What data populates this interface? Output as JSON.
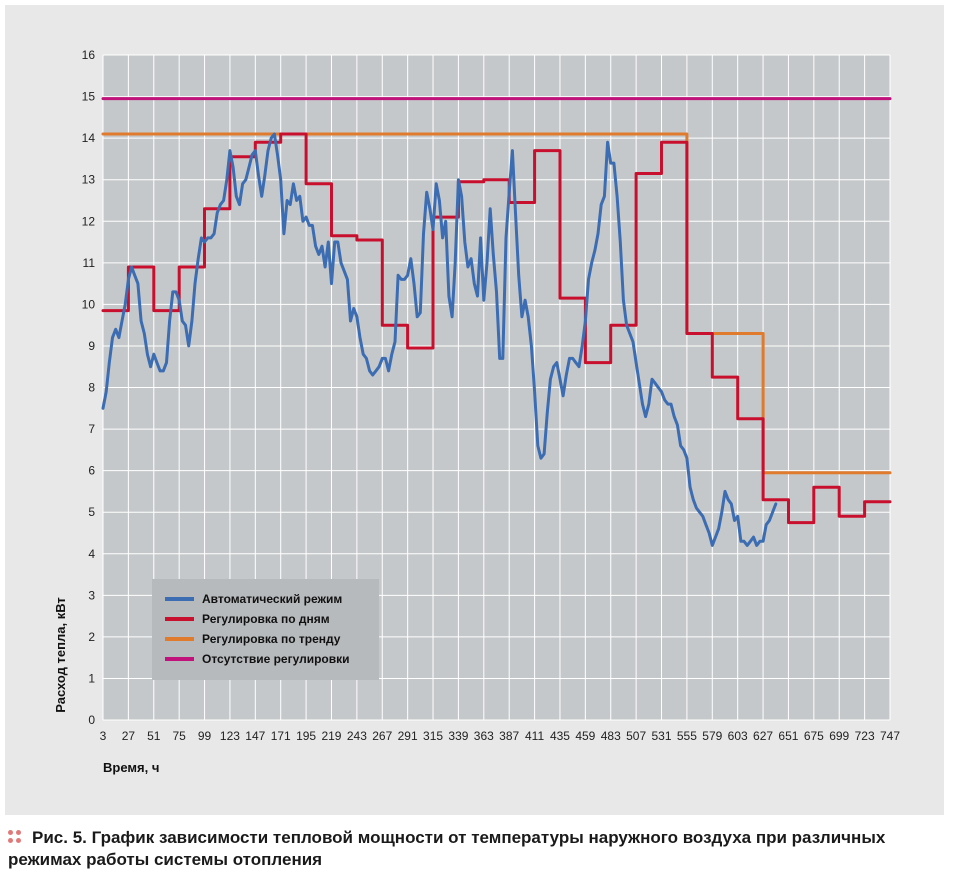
{
  "caption": {
    "text": "Рис. 5. График зависимости тепловой мощности от температуры наружного воздуха при различных режимах работы системы отопления"
  },
  "chart_data": {
    "type": "line",
    "xlabel": "Время, ч",
    "ylabel": "Расход тепла, кВт",
    "xlim": [
      3,
      747
    ],
    "ylim": [
      0,
      16
    ],
    "x_ticks": [
      3,
      27,
      51,
      75,
      99,
      123,
      147,
      171,
      195,
      219,
      243,
      267,
      291,
      315,
      339,
      363,
      387,
      411,
      435,
      459,
      483,
      507,
      531,
      555,
      579,
      603,
      627,
      651,
      675,
      699,
      723,
      747
    ],
    "y_ticks": [
      0,
      1,
      2,
      3,
      4,
      5,
      6,
      7,
      8,
      9,
      10,
      11,
      12,
      13,
      14,
      15,
      16
    ],
    "grid": true,
    "legend_position": "bottom-left",
    "series": [
      {
        "name": "Автоматический режим",
        "color": "#3c6db2",
        "points": [
          [
            3,
            7.5
          ],
          [
            6,
            7.9
          ],
          [
            9,
            8.6
          ],
          [
            12,
            9.2
          ],
          [
            15,
            9.4
          ],
          [
            18,
            9.2
          ],
          [
            21,
            9.6
          ],
          [
            24,
            10.0
          ],
          [
            27,
            10.6
          ],
          [
            30,
            10.9
          ],
          [
            33,
            10.7
          ],
          [
            36,
            10.5
          ],
          [
            39,
            9.6
          ],
          [
            42,
            9.3
          ],
          [
            45,
            8.8
          ],
          [
            48,
            8.5
          ],
          [
            51,
            8.8
          ],
          [
            54,
            8.6
          ],
          [
            57,
            8.4
          ],
          [
            60,
            8.4
          ],
          [
            63,
            8.6
          ],
          [
            66,
            9.6
          ],
          [
            69,
            10.3
          ],
          [
            72,
            10.3
          ],
          [
            75,
            10.1
          ],
          [
            78,
            9.6
          ],
          [
            81,
            9.5
          ],
          [
            84,
            9.0
          ],
          [
            87,
            9.6
          ],
          [
            90,
            10.5
          ],
          [
            93,
            11.1
          ],
          [
            96,
            11.6
          ],
          [
            99,
            11.5
          ],
          [
            102,
            11.6
          ],
          [
            105,
            11.6
          ],
          [
            108,
            11.7
          ],
          [
            111,
            12.2
          ],
          [
            114,
            12.4
          ],
          [
            117,
            12.5
          ],
          [
            120,
            13.0
          ],
          [
            123,
            13.7
          ],
          [
            126,
            13.3
          ],
          [
            129,
            12.6
          ],
          [
            132,
            12.4
          ],
          [
            135,
            12.9
          ],
          [
            138,
            13.0
          ],
          [
            141,
            13.3
          ],
          [
            144,
            13.6
          ],
          [
            147,
            13.7
          ],
          [
            150,
            13.1
          ],
          [
            153,
            12.6
          ],
          [
            156,
            13.1
          ],
          [
            159,
            13.7
          ],
          [
            162,
            14.0
          ],
          [
            165,
            14.1
          ],
          [
            168,
            13.6
          ],
          [
            171,
            13.0
          ],
          [
            174,
            11.7
          ],
          [
            177,
            12.5
          ],
          [
            180,
            12.4
          ],
          [
            183,
            12.9
          ],
          [
            186,
            12.5
          ],
          [
            189,
            12.6
          ],
          [
            192,
            12.0
          ],
          [
            195,
            12.1
          ],
          [
            198,
            11.9
          ],
          [
            201,
            11.9
          ],
          [
            204,
            11.4
          ],
          [
            207,
            11.2
          ],
          [
            210,
            11.4
          ],
          [
            213,
            10.9
          ],
          [
            216,
            11.5
          ],
          [
            219,
            10.5
          ],
          [
            222,
            11.5
          ],
          [
            225,
            11.5
          ],
          [
            228,
            11.0
          ],
          [
            231,
            10.8
          ],
          [
            234,
            10.6
          ],
          [
            237,
            9.6
          ],
          [
            240,
            9.9
          ],
          [
            243,
            9.7
          ],
          [
            246,
            9.2
          ],
          [
            249,
            8.8
          ],
          [
            252,
            8.7
          ],
          [
            255,
            8.4
          ],
          [
            258,
            8.3
          ],
          [
            261,
            8.4
          ],
          [
            264,
            8.5
          ],
          [
            267,
            8.7
          ],
          [
            270,
            8.7
          ],
          [
            273,
            8.4
          ],
          [
            276,
            8.8
          ],
          [
            279,
            9.1
          ],
          [
            282,
            10.7
          ],
          [
            285,
            10.6
          ],
          [
            288,
            10.6
          ],
          [
            291,
            10.7
          ],
          [
            294,
            11.1
          ],
          [
            297,
            10.5
          ],
          [
            300,
            9.7
          ],
          [
            303,
            9.8
          ],
          [
            306,
            11.7
          ],
          [
            309,
            12.7
          ],
          [
            312,
            12.3
          ],
          [
            315,
            11.8
          ],
          [
            318,
            12.9
          ],
          [
            321,
            12.5
          ],
          [
            324,
            11.6
          ],
          [
            327,
            12.0
          ],
          [
            330,
            10.2
          ],
          [
            333,
            9.7
          ],
          [
            336,
            11.0
          ],
          [
            339,
            13.0
          ],
          [
            342,
            12.6
          ],
          [
            345,
            11.5
          ],
          [
            348,
            10.9
          ],
          [
            351,
            11.1
          ],
          [
            354,
            10.5
          ],
          [
            357,
            10.2
          ],
          [
            360,
            11.6
          ],
          [
            363,
            10.1
          ],
          [
            366,
            11.0
          ],
          [
            369,
            12.3
          ],
          [
            372,
            11.2
          ],
          [
            375,
            10.3
          ],
          [
            378,
            8.7
          ],
          [
            381,
            8.7
          ],
          [
            384,
            11.6
          ],
          [
            387,
            12.7
          ],
          [
            390,
            13.7
          ],
          [
            393,
            12.2
          ],
          [
            396,
            10.7
          ],
          [
            399,
            9.7
          ],
          [
            402,
            10.1
          ],
          [
            405,
            9.7
          ],
          [
            408,
            9.0
          ],
          [
            411,
            7.9
          ],
          [
            414,
            6.6
          ],
          [
            417,
            6.3
          ],
          [
            420,
            6.4
          ],
          [
            423,
            7.4
          ],
          [
            426,
            8.2
          ],
          [
            429,
            8.5
          ],
          [
            432,
            8.6
          ],
          [
            435,
            8.2
          ],
          [
            438,
            7.8
          ],
          [
            441,
            8.3
          ],
          [
            444,
            8.7
          ],
          [
            447,
            8.7
          ],
          [
            450,
            8.6
          ],
          [
            453,
            8.5
          ],
          [
            456,
            9.0
          ],
          [
            459,
            9.6
          ],
          [
            462,
            10.6
          ],
          [
            465,
            11.0
          ],
          [
            468,
            11.3
          ],
          [
            471,
            11.7
          ],
          [
            474,
            12.4
          ],
          [
            477,
            12.6
          ],
          [
            480,
            13.9
          ],
          [
            483,
            13.4
          ],
          [
            486,
            13.4
          ],
          [
            489,
            12.6
          ],
          [
            492,
            11.5
          ],
          [
            495,
            10.1
          ],
          [
            498,
            9.5
          ],
          [
            501,
            9.3
          ],
          [
            504,
            9.1
          ],
          [
            507,
            8.6
          ],
          [
            510,
            8.1
          ],
          [
            513,
            7.6
          ],
          [
            516,
            7.3
          ],
          [
            519,
            7.6
          ],
          [
            522,
            8.2
          ],
          [
            525,
            8.1
          ],
          [
            528,
            8.0
          ],
          [
            531,
            7.9
          ],
          [
            534,
            7.7
          ],
          [
            537,
            7.6
          ],
          [
            540,
            7.6
          ],
          [
            543,
            7.3
          ],
          [
            546,
            7.1
          ],
          [
            549,
            6.6
          ],
          [
            552,
            6.5
          ],
          [
            555,
            6.3
          ],
          [
            558,
            5.6
          ],
          [
            561,
            5.3
          ],
          [
            564,
            5.1
          ],
          [
            567,
            5.0
          ],
          [
            570,
            4.9
          ],
          [
            573,
            4.7
          ],
          [
            576,
            4.5
          ],
          [
            579,
            4.2
          ],
          [
            582,
            4.4
          ],
          [
            585,
            4.6
          ],
          [
            588,
            5.0
          ],
          [
            591,
            5.5
          ],
          [
            594,
            5.3
          ],
          [
            597,
            5.2
          ],
          [
            600,
            4.8
          ],
          [
            603,
            4.9
          ],
          [
            606,
            4.3
          ],
          [
            609,
            4.3
          ],
          [
            612,
            4.2
          ],
          [
            615,
            4.3
          ],
          [
            618,
            4.4
          ],
          [
            621,
            4.2
          ],
          [
            624,
            4.3
          ],
          [
            627,
            4.3
          ],
          [
            630,
            4.7
          ],
          [
            633,
            4.8
          ],
          [
            636,
            5.0
          ],
          [
            639,
            5.2
          ]
        ]
      },
      {
        "name": "Регулировка по дням",
        "color": "#c8102e",
        "points": [
          [
            3,
            9.85
          ],
          [
            27,
            9.85
          ],
          [
            27,
            10.9
          ],
          [
            51,
            10.9
          ],
          [
            51,
            9.85
          ],
          [
            75,
            9.85
          ],
          [
            75,
            10.9
          ],
          [
            99,
            10.9
          ],
          [
            99,
            12.3
          ],
          [
            123,
            12.3
          ],
          [
            123,
            13.55
          ],
          [
            147,
            13.55
          ],
          [
            147,
            13.9
          ],
          [
            171,
            13.9
          ],
          [
            171,
            14.1
          ],
          [
            195,
            14.1
          ],
          [
            195,
            12.9
          ],
          [
            219,
            12.9
          ],
          [
            219,
            11.65
          ],
          [
            243,
            11.65
          ],
          [
            243,
            11.55
          ],
          [
            267,
            11.55
          ],
          [
            267,
            9.5
          ],
          [
            291,
            9.5
          ],
          [
            291,
            8.95
          ],
          [
            315,
            8.95
          ],
          [
            315,
            12.1
          ],
          [
            339,
            12.1
          ],
          [
            339,
            12.95
          ],
          [
            363,
            12.95
          ],
          [
            363,
            13.0
          ],
          [
            387,
            13.0
          ],
          [
            387,
            12.45
          ],
          [
            411,
            12.45
          ],
          [
            411,
            13.7
          ],
          [
            435,
            13.7
          ],
          [
            435,
            10.15
          ],
          [
            459,
            10.15
          ],
          [
            459,
            8.6
          ],
          [
            483,
            8.6
          ],
          [
            483,
            9.5
          ],
          [
            507,
            9.5
          ],
          [
            507,
            13.15
          ],
          [
            531,
            13.15
          ],
          [
            531,
            13.9
          ],
          [
            555,
            13.9
          ],
          [
            555,
            9.3
          ],
          [
            579,
            9.3
          ],
          [
            579,
            8.25
          ],
          [
            603,
            8.25
          ],
          [
            603,
            7.25
          ],
          [
            627,
            7.25
          ],
          [
            627,
            5.3
          ],
          [
            651,
            5.3
          ],
          [
            651,
            4.75
          ],
          [
            675,
            4.75
          ],
          [
            675,
            5.6
          ],
          [
            699,
            5.6
          ],
          [
            699,
            4.9
          ],
          [
            723,
            4.9
          ],
          [
            723,
            5.25
          ],
          [
            747,
            5.25
          ]
        ]
      },
      {
        "name": "Регулировка по тренду",
        "color": "#e07b2e",
        "points": [
          [
            3,
            14.1
          ],
          [
            555,
            14.1
          ],
          [
            555,
            9.3
          ],
          [
            627,
            9.3
          ],
          [
            627,
            5.95
          ],
          [
            747,
            5.95
          ]
        ]
      },
      {
        "name": "Отсутствие регулировки",
        "color": "#c0127a",
        "points": [
          [
            3,
            14.95
          ],
          [
            747,
            14.95
          ]
        ]
      }
    ]
  }
}
